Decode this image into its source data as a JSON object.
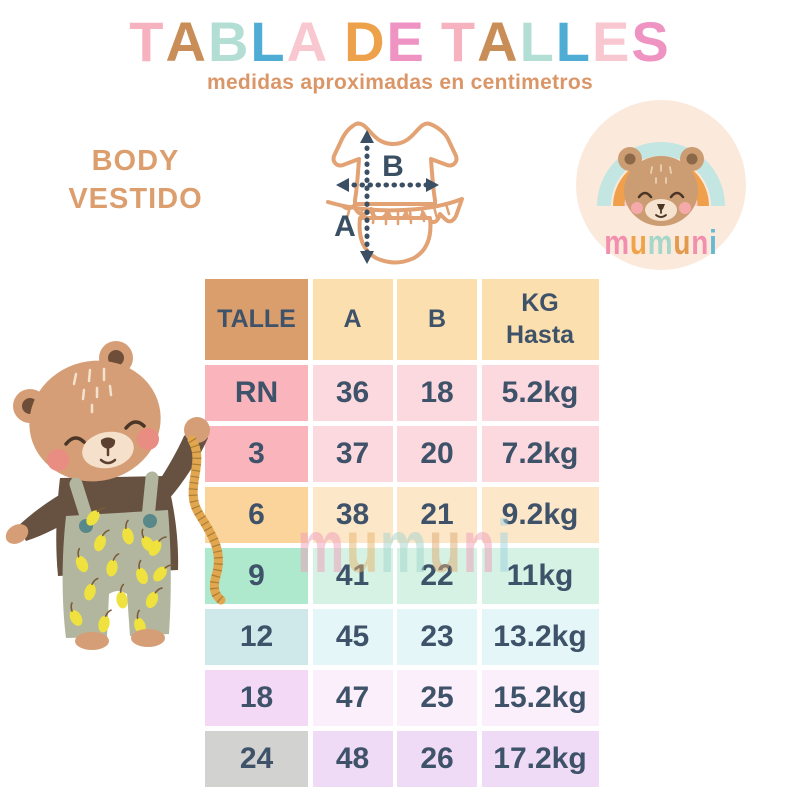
{
  "header": {
    "title_letters": [
      {
        "ch": "T",
        "color": "#f6b2bf"
      },
      {
        "ch": "A",
        "color": "#c98e58"
      },
      {
        "ch": "B",
        "color": "#b3ded4"
      },
      {
        "ch": "L",
        "color": "#4facd4"
      },
      {
        "ch": "A",
        "color": "#f9c7cf"
      },
      {
        "ch": " "
      },
      {
        "ch": "D",
        "color": "#eda14b"
      },
      {
        "ch": "E",
        "color": "#ef93c3"
      },
      {
        "ch": " "
      },
      {
        "ch": "T",
        "color": "#f6b2bf"
      },
      {
        "ch": "A",
        "color": "#c98e58"
      },
      {
        "ch": "L",
        "color": "#b3ded4"
      },
      {
        "ch": "L",
        "color": "#4facd4"
      },
      {
        "ch": "E",
        "color": "#f9c7cf"
      },
      {
        "ch": "S",
        "color": "#ef93c3"
      }
    ],
    "subtitle": "medidas aproximadas en centimetros"
  },
  "product": {
    "line1": "BODY",
    "line2": "VESTIDO"
  },
  "garment": {
    "measure_a_label": "A",
    "measure_b_label": "B"
  },
  "logo": {
    "brand_letters": [
      {
        "ch": "m",
        "color": "#f38fae"
      },
      {
        "ch": "u",
        "color": "#f0a44a"
      },
      {
        "ch": "m",
        "color": "#a5d6c9"
      },
      {
        "ch": "u",
        "color": "#e29b4e"
      },
      {
        "ch": "n",
        "color": "#f38fae"
      },
      {
        "ch": "i",
        "color": "#64b9d4"
      }
    ]
  },
  "watermark": {
    "letters": [
      {
        "ch": "m",
        "color": "#ef9fba"
      },
      {
        "ch": "u",
        "color": "#e8b36b"
      },
      {
        "ch": "m",
        "color": "#a3d5cc"
      },
      {
        "ch": "u",
        "color": "#e0ab72"
      },
      {
        "ch": "n",
        "color": "#ef9fba"
      },
      {
        "ch": "i",
        "color": "#9fd2e2"
      }
    ]
  },
  "table": {
    "columns": [
      {
        "key": "talle",
        "label": "TALLE"
      },
      {
        "key": "a",
        "label": "A"
      },
      {
        "key": "b",
        "label": "B"
      },
      {
        "key": "kg",
        "label": "KG",
        "label2": "Hasta"
      }
    ],
    "header_colors": {
      "first": "#d99e6b",
      "rest": "#fcdfae"
    },
    "text_color": "#3e5269",
    "rows": [
      {
        "talle": "RN",
        "a": "36",
        "b": "18",
        "kg": "5.2kg",
        "talle_bg": "#f9b4bc",
        "cells_bg": "#fcd9de"
      },
      {
        "talle": "3",
        "a": "37",
        "b": "20",
        "kg": "7.2kg",
        "talle_bg": "#f9b4bc",
        "cells_bg": "#fcd9de"
      },
      {
        "talle": "6",
        "a": "38",
        "b": "21",
        "kg": "9.2kg",
        "talle_bg": "#fbd49c",
        "cells_bg": "#fde7c9"
      },
      {
        "talle": "9",
        "a": "41",
        "b": "22",
        "kg": "11kg",
        "talle_bg": "#aee8cd",
        "cells_bg": "#d5f2e4"
      },
      {
        "talle": "12",
        "a": "45",
        "b": "23",
        "kg": "13.2kg",
        "talle_bg": "#cfe9eb",
        "cells_bg": "#e4f6f7"
      },
      {
        "talle": "18",
        "a": "47",
        "b": "25",
        "kg": "15.2kg",
        "talle_bg": "#f4d9f6",
        "cells_bg": "#fceffc"
      },
      {
        "talle": "24",
        "a": "48",
        "b": "26",
        "kg": "17.2kg",
        "talle_bg": "#d2d2d0",
        "cells_bg": "#f0dbf7"
      }
    ]
  },
  "colors": {
    "subtitle": "#db9668",
    "product_label": "#dd9e6e",
    "garment_outline": "#e2a273",
    "arrow": "#3a4f63",
    "logo_circle_bg": "#fbe9dc"
  }
}
